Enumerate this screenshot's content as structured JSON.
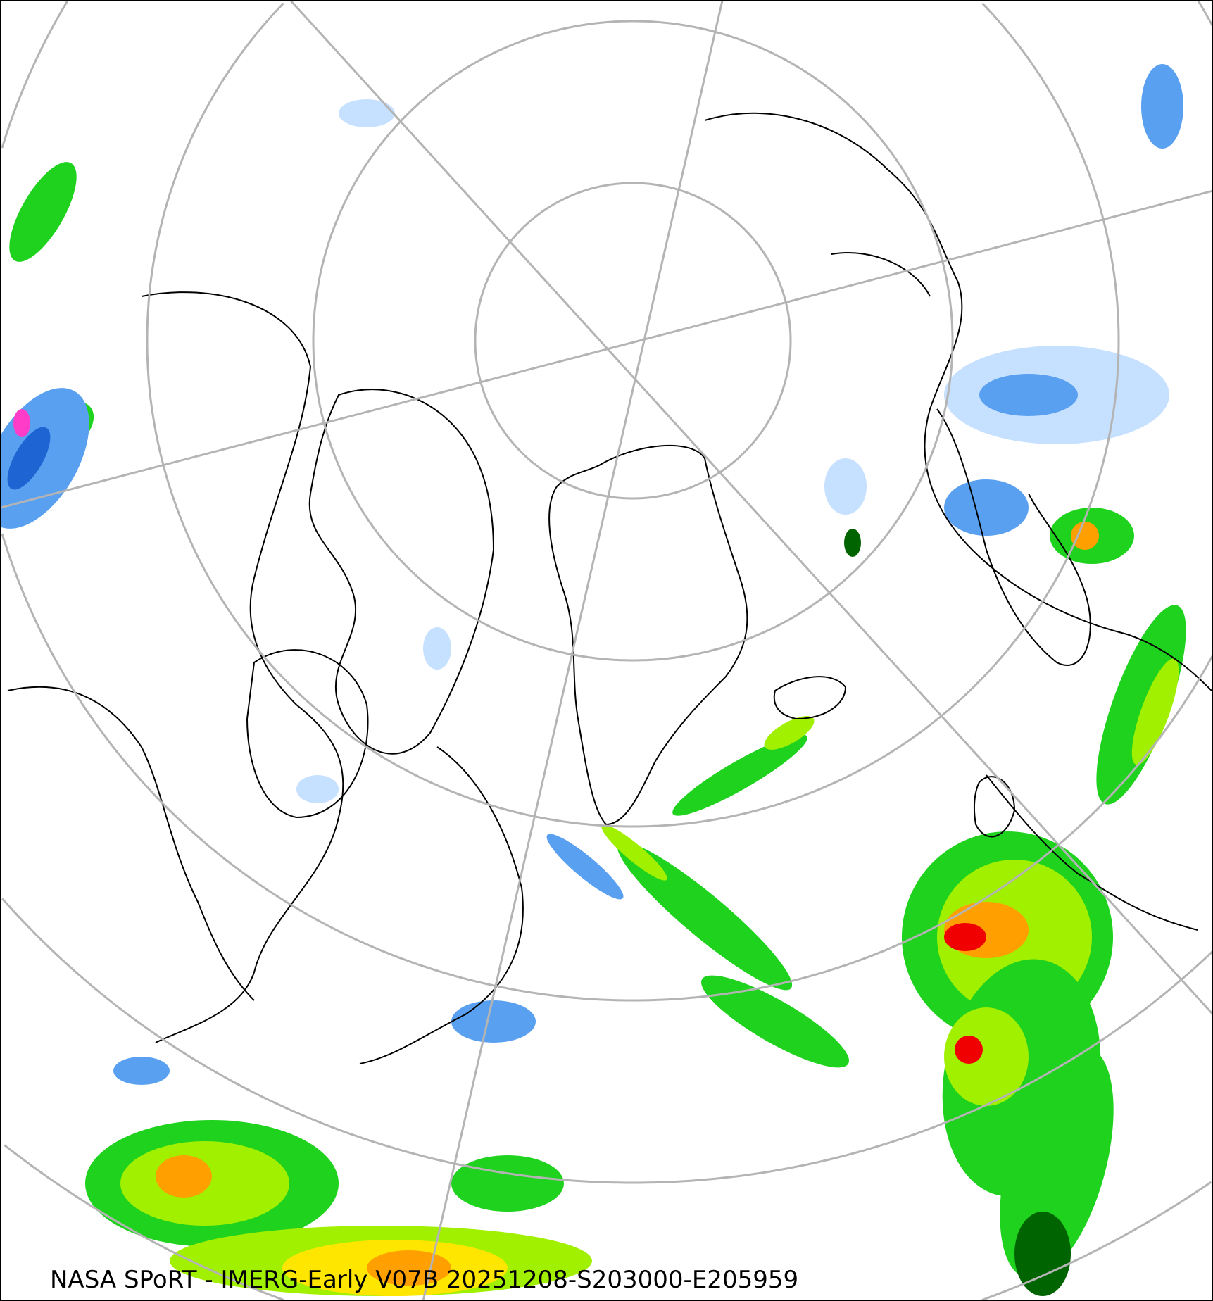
{
  "caption": "NASA SPoRT - IMERG-Early V07B 20251208-S203000-E205959",
  "projection": "north-polar-stereographic",
  "colors": {
    "graticule": "#b4b4b4",
    "coastline": "#000000",
    "precip_light": "#c6e0ff",
    "precip_blue": "#5aa0f0",
    "precip_darkblue": "#1e64d2",
    "precip_darkgreen": "#006400",
    "precip_green": "#1ed21e",
    "precip_lime": "#a0f000",
    "precip_yellow": "#ffe600",
    "precip_orange": "#ffa000",
    "precip_red": "#f00000",
    "precip_magenta": "#ff3cc8"
  }
}
